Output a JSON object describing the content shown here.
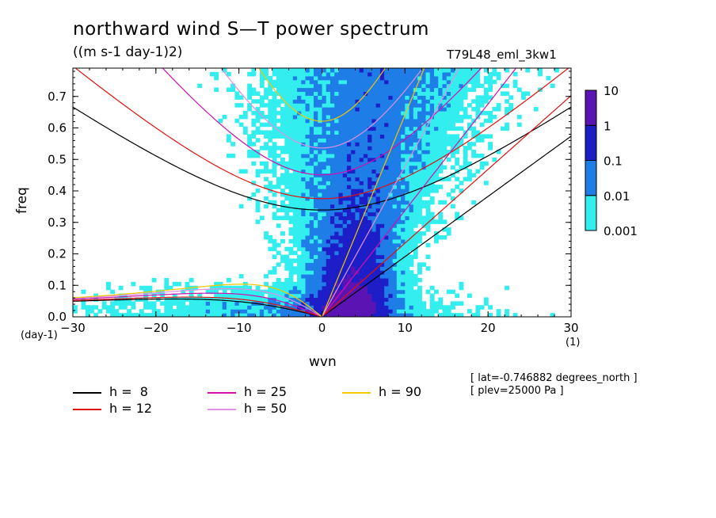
{
  "header": {
    "title": "northward wind S—T power spectrum",
    "units": "((m s-1 day-1)2)",
    "run_id": "T79L48_eml_3kw1"
  },
  "info": {
    "lat": "[ lat=-0.746882 degrees_north ]",
    "plev": "[ plev=25000 Pa ]"
  },
  "chart_data": {
    "type": "heatmap",
    "title": "northward wind S—T power spectrum",
    "xlabel": "wvn",
    "ylabel": "freq",
    "x_unit": "(1)",
    "y_unit": "(day-1)",
    "xlim": [
      -30,
      30
    ],
    "ylim": [
      0,
      0.79
    ],
    "x_ticks": [
      -30,
      -20,
      -10,
      0,
      10,
      20,
      30
    ],
    "x_tick_labels": [
      "−30",
      "−20",
      "−10",
      "0",
      "10",
      "20",
      "30"
    ],
    "y_ticks": [
      0,
      0.1,
      0.2,
      0.3,
      0.4,
      0.5,
      0.6,
      0.7
    ],
    "y_tick_labels": [
      "0.0",
      "0.1",
      "0.2",
      "0.3",
      "0.4",
      "0.5",
      "0.6",
      "0.7"
    ],
    "colorbar": {
      "levels": [
        "0.001",
        "0.01",
        "0.1",
        "1",
        "10"
      ],
      "colors": [
        "#33eeee",
        "#1e7de6",
        "#1e1ec8",
        "#5a14b4"
      ]
    },
    "equivalent_depths": [
      {
        "label": "h =  8",
        "h": 8,
        "color": "#000000"
      },
      {
        "label": "h = 12",
        "h": 12,
        "color": "#e01010"
      },
      {
        "label": "h = 25",
        "h": 25,
        "color": "#d010b0"
      },
      {
        "label": "h = 50",
        "h": 50,
        "color": "#e090e0"
      },
      {
        "label": "h = 90",
        "h": 90,
        "color": "#f0c800"
      }
    ]
  }
}
